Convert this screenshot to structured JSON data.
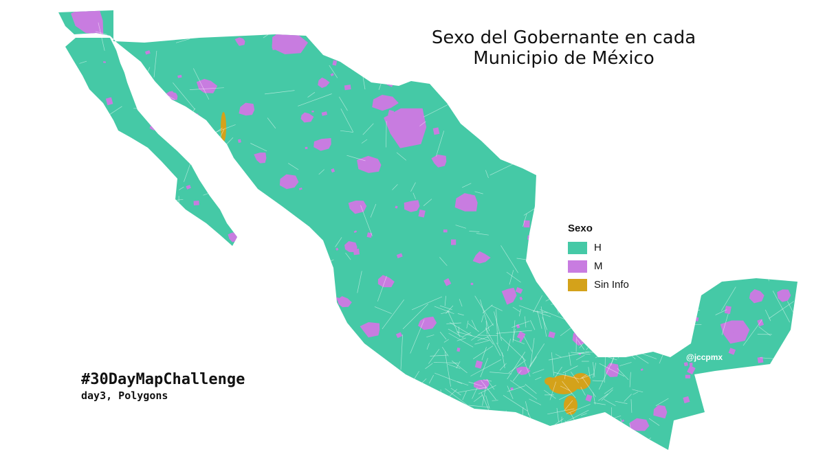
{
  "map": {
    "title_line1": "Sexo del Gobernante en cada",
    "title_line2": "Municipio de México",
    "legend": {
      "title": "Sexo",
      "items": [
        {
          "label": "H",
          "color": "#45c9a6"
        },
        {
          "label": "M",
          "color": "#c87ce0"
        },
        {
          "label": "Sin Info",
          "color": "#d4a21a"
        }
      ]
    },
    "hashtag": "#30DayMapChallenge",
    "subtitle": "day3, Polygons",
    "credit": "@jccpmx",
    "colors": {
      "H": "#45c9a6",
      "M": "#c87ce0",
      "Sin Info": "#d4a21a",
      "border": "#ffffff",
      "background": "#ffffff"
    }
  }
}
